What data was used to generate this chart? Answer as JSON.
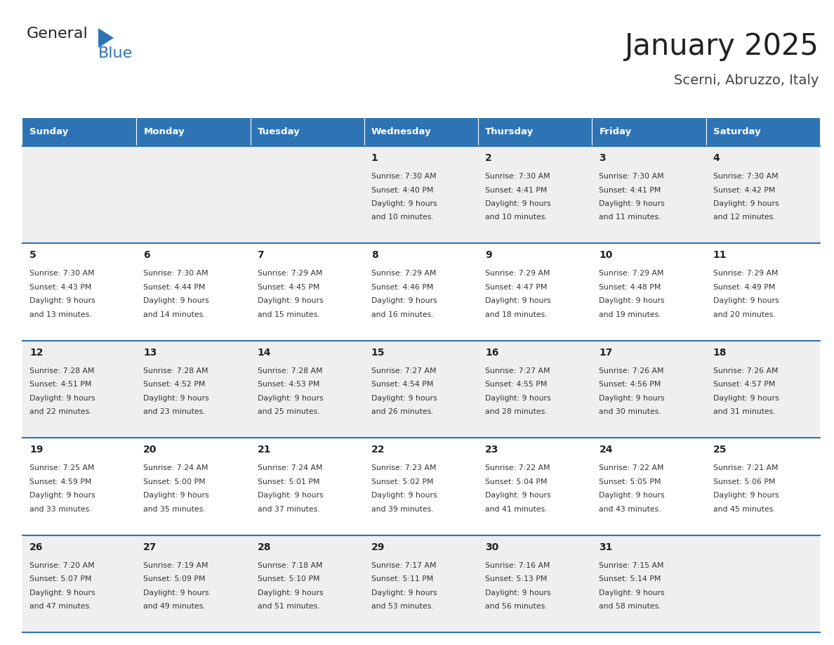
{
  "title": "January 2025",
  "subtitle": "Scerni, Abruzzo, Italy",
  "header_bg": "#2E74B5",
  "header_text_color": "#FFFFFF",
  "cell_bg_odd": "#EFEFEF",
  "cell_bg_even": "#FFFFFF",
  "border_color": "#2E74B5",
  "days_of_week": [
    "Sunday",
    "Monday",
    "Tuesday",
    "Wednesday",
    "Thursday",
    "Friday",
    "Saturday"
  ],
  "weeks": [
    [
      {
        "day": "",
        "sunrise": "",
        "sunset": "",
        "daylight_h": "",
        "daylight_m": ""
      },
      {
        "day": "",
        "sunrise": "",
        "sunset": "",
        "daylight_h": "",
        "daylight_m": ""
      },
      {
        "day": "",
        "sunrise": "",
        "sunset": "",
        "daylight_h": "",
        "daylight_m": ""
      },
      {
        "day": "1",
        "sunrise": "7:30 AM",
        "sunset": "4:40 PM",
        "daylight_h": "9 hours",
        "daylight_m": "10 minutes."
      },
      {
        "day": "2",
        "sunrise": "7:30 AM",
        "sunset": "4:41 PM",
        "daylight_h": "9 hours",
        "daylight_m": "10 minutes."
      },
      {
        "day": "3",
        "sunrise": "7:30 AM",
        "sunset": "4:41 PM",
        "daylight_h": "9 hours",
        "daylight_m": "11 minutes."
      },
      {
        "day": "4",
        "sunrise": "7:30 AM",
        "sunset": "4:42 PM",
        "daylight_h": "9 hours",
        "daylight_m": "12 minutes."
      }
    ],
    [
      {
        "day": "5",
        "sunrise": "7:30 AM",
        "sunset": "4:43 PM",
        "daylight_h": "9 hours",
        "daylight_m": "13 minutes."
      },
      {
        "day": "6",
        "sunrise": "7:30 AM",
        "sunset": "4:44 PM",
        "daylight_h": "9 hours",
        "daylight_m": "14 minutes."
      },
      {
        "day": "7",
        "sunrise": "7:29 AM",
        "sunset": "4:45 PM",
        "daylight_h": "9 hours",
        "daylight_m": "15 minutes."
      },
      {
        "day": "8",
        "sunrise": "7:29 AM",
        "sunset": "4:46 PM",
        "daylight_h": "9 hours",
        "daylight_m": "16 minutes."
      },
      {
        "day": "9",
        "sunrise": "7:29 AM",
        "sunset": "4:47 PM",
        "daylight_h": "9 hours",
        "daylight_m": "18 minutes."
      },
      {
        "day": "10",
        "sunrise": "7:29 AM",
        "sunset": "4:48 PM",
        "daylight_h": "9 hours",
        "daylight_m": "19 minutes."
      },
      {
        "day": "11",
        "sunrise": "7:29 AM",
        "sunset": "4:49 PM",
        "daylight_h": "9 hours",
        "daylight_m": "20 minutes."
      }
    ],
    [
      {
        "day": "12",
        "sunrise": "7:28 AM",
        "sunset": "4:51 PM",
        "daylight_h": "9 hours",
        "daylight_m": "22 minutes."
      },
      {
        "day": "13",
        "sunrise": "7:28 AM",
        "sunset": "4:52 PM",
        "daylight_h": "9 hours",
        "daylight_m": "23 minutes."
      },
      {
        "day": "14",
        "sunrise": "7:28 AM",
        "sunset": "4:53 PM",
        "daylight_h": "9 hours",
        "daylight_m": "25 minutes."
      },
      {
        "day": "15",
        "sunrise": "7:27 AM",
        "sunset": "4:54 PM",
        "daylight_h": "9 hours",
        "daylight_m": "26 minutes."
      },
      {
        "day": "16",
        "sunrise": "7:27 AM",
        "sunset": "4:55 PM",
        "daylight_h": "9 hours",
        "daylight_m": "28 minutes."
      },
      {
        "day": "17",
        "sunrise": "7:26 AM",
        "sunset": "4:56 PM",
        "daylight_h": "9 hours",
        "daylight_m": "30 minutes."
      },
      {
        "day": "18",
        "sunrise": "7:26 AM",
        "sunset": "4:57 PM",
        "daylight_h": "9 hours",
        "daylight_m": "31 minutes."
      }
    ],
    [
      {
        "day": "19",
        "sunrise": "7:25 AM",
        "sunset": "4:59 PM",
        "daylight_h": "9 hours",
        "daylight_m": "33 minutes."
      },
      {
        "day": "20",
        "sunrise": "7:24 AM",
        "sunset": "5:00 PM",
        "daylight_h": "9 hours",
        "daylight_m": "35 minutes."
      },
      {
        "day": "21",
        "sunrise": "7:24 AM",
        "sunset": "5:01 PM",
        "daylight_h": "9 hours",
        "daylight_m": "37 minutes."
      },
      {
        "day": "22",
        "sunrise": "7:23 AM",
        "sunset": "5:02 PM",
        "daylight_h": "9 hours",
        "daylight_m": "39 minutes."
      },
      {
        "day": "23",
        "sunrise": "7:22 AM",
        "sunset": "5:04 PM",
        "daylight_h": "9 hours",
        "daylight_m": "41 minutes."
      },
      {
        "day": "24",
        "sunrise": "7:22 AM",
        "sunset": "5:05 PM",
        "daylight_h": "9 hours",
        "daylight_m": "43 minutes."
      },
      {
        "day": "25",
        "sunrise": "7:21 AM",
        "sunset": "5:06 PM",
        "daylight_h": "9 hours",
        "daylight_m": "45 minutes."
      }
    ],
    [
      {
        "day": "26",
        "sunrise": "7:20 AM",
        "sunset": "5:07 PM",
        "daylight_h": "9 hours",
        "daylight_m": "47 minutes."
      },
      {
        "day": "27",
        "sunrise": "7:19 AM",
        "sunset": "5:09 PM",
        "daylight_h": "9 hours",
        "daylight_m": "49 minutes."
      },
      {
        "day": "28",
        "sunrise": "7:18 AM",
        "sunset": "5:10 PM",
        "daylight_h": "9 hours",
        "daylight_m": "51 minutes."
      },
      {
        "day": "29",
        "sunrise": "7:17 AM",
        "sunset": "5:11 PM",
        "daylight_h": "9 hours",
        "daylight_m": "53 minutes."
      },
      {
        "day": "30",
        "sunrise": "7:16 AM",
        "sunset": "5:13 PM",
        "daylight_h": "9 hours",
        "daylight_m": "56 minutes."
      },
      {
        "day": "31",
        "sunrise": "7:15 AM",
        "sunset": "5:14 PM",
        "daylight_h": "9 hours",
        "daylight_m": "58 minutes."
      },
      {
        "day": "",
        "sunrise": "",
        "sunset": "",
        "daylight_h": "",
        "daylight_m": ""
      }
    ]
  ],
  "logo_text_general": "General",
  "logo_text_blue": "Blue",
  "logo_color_general": "#222222",
  "logo_color_blue": "#2E74B5",
  "title_color": "#222222",
  "subtitle_color": "#444444",
  "day_number_color": "#222222",
  "cell_text_color": "#333333"
}
